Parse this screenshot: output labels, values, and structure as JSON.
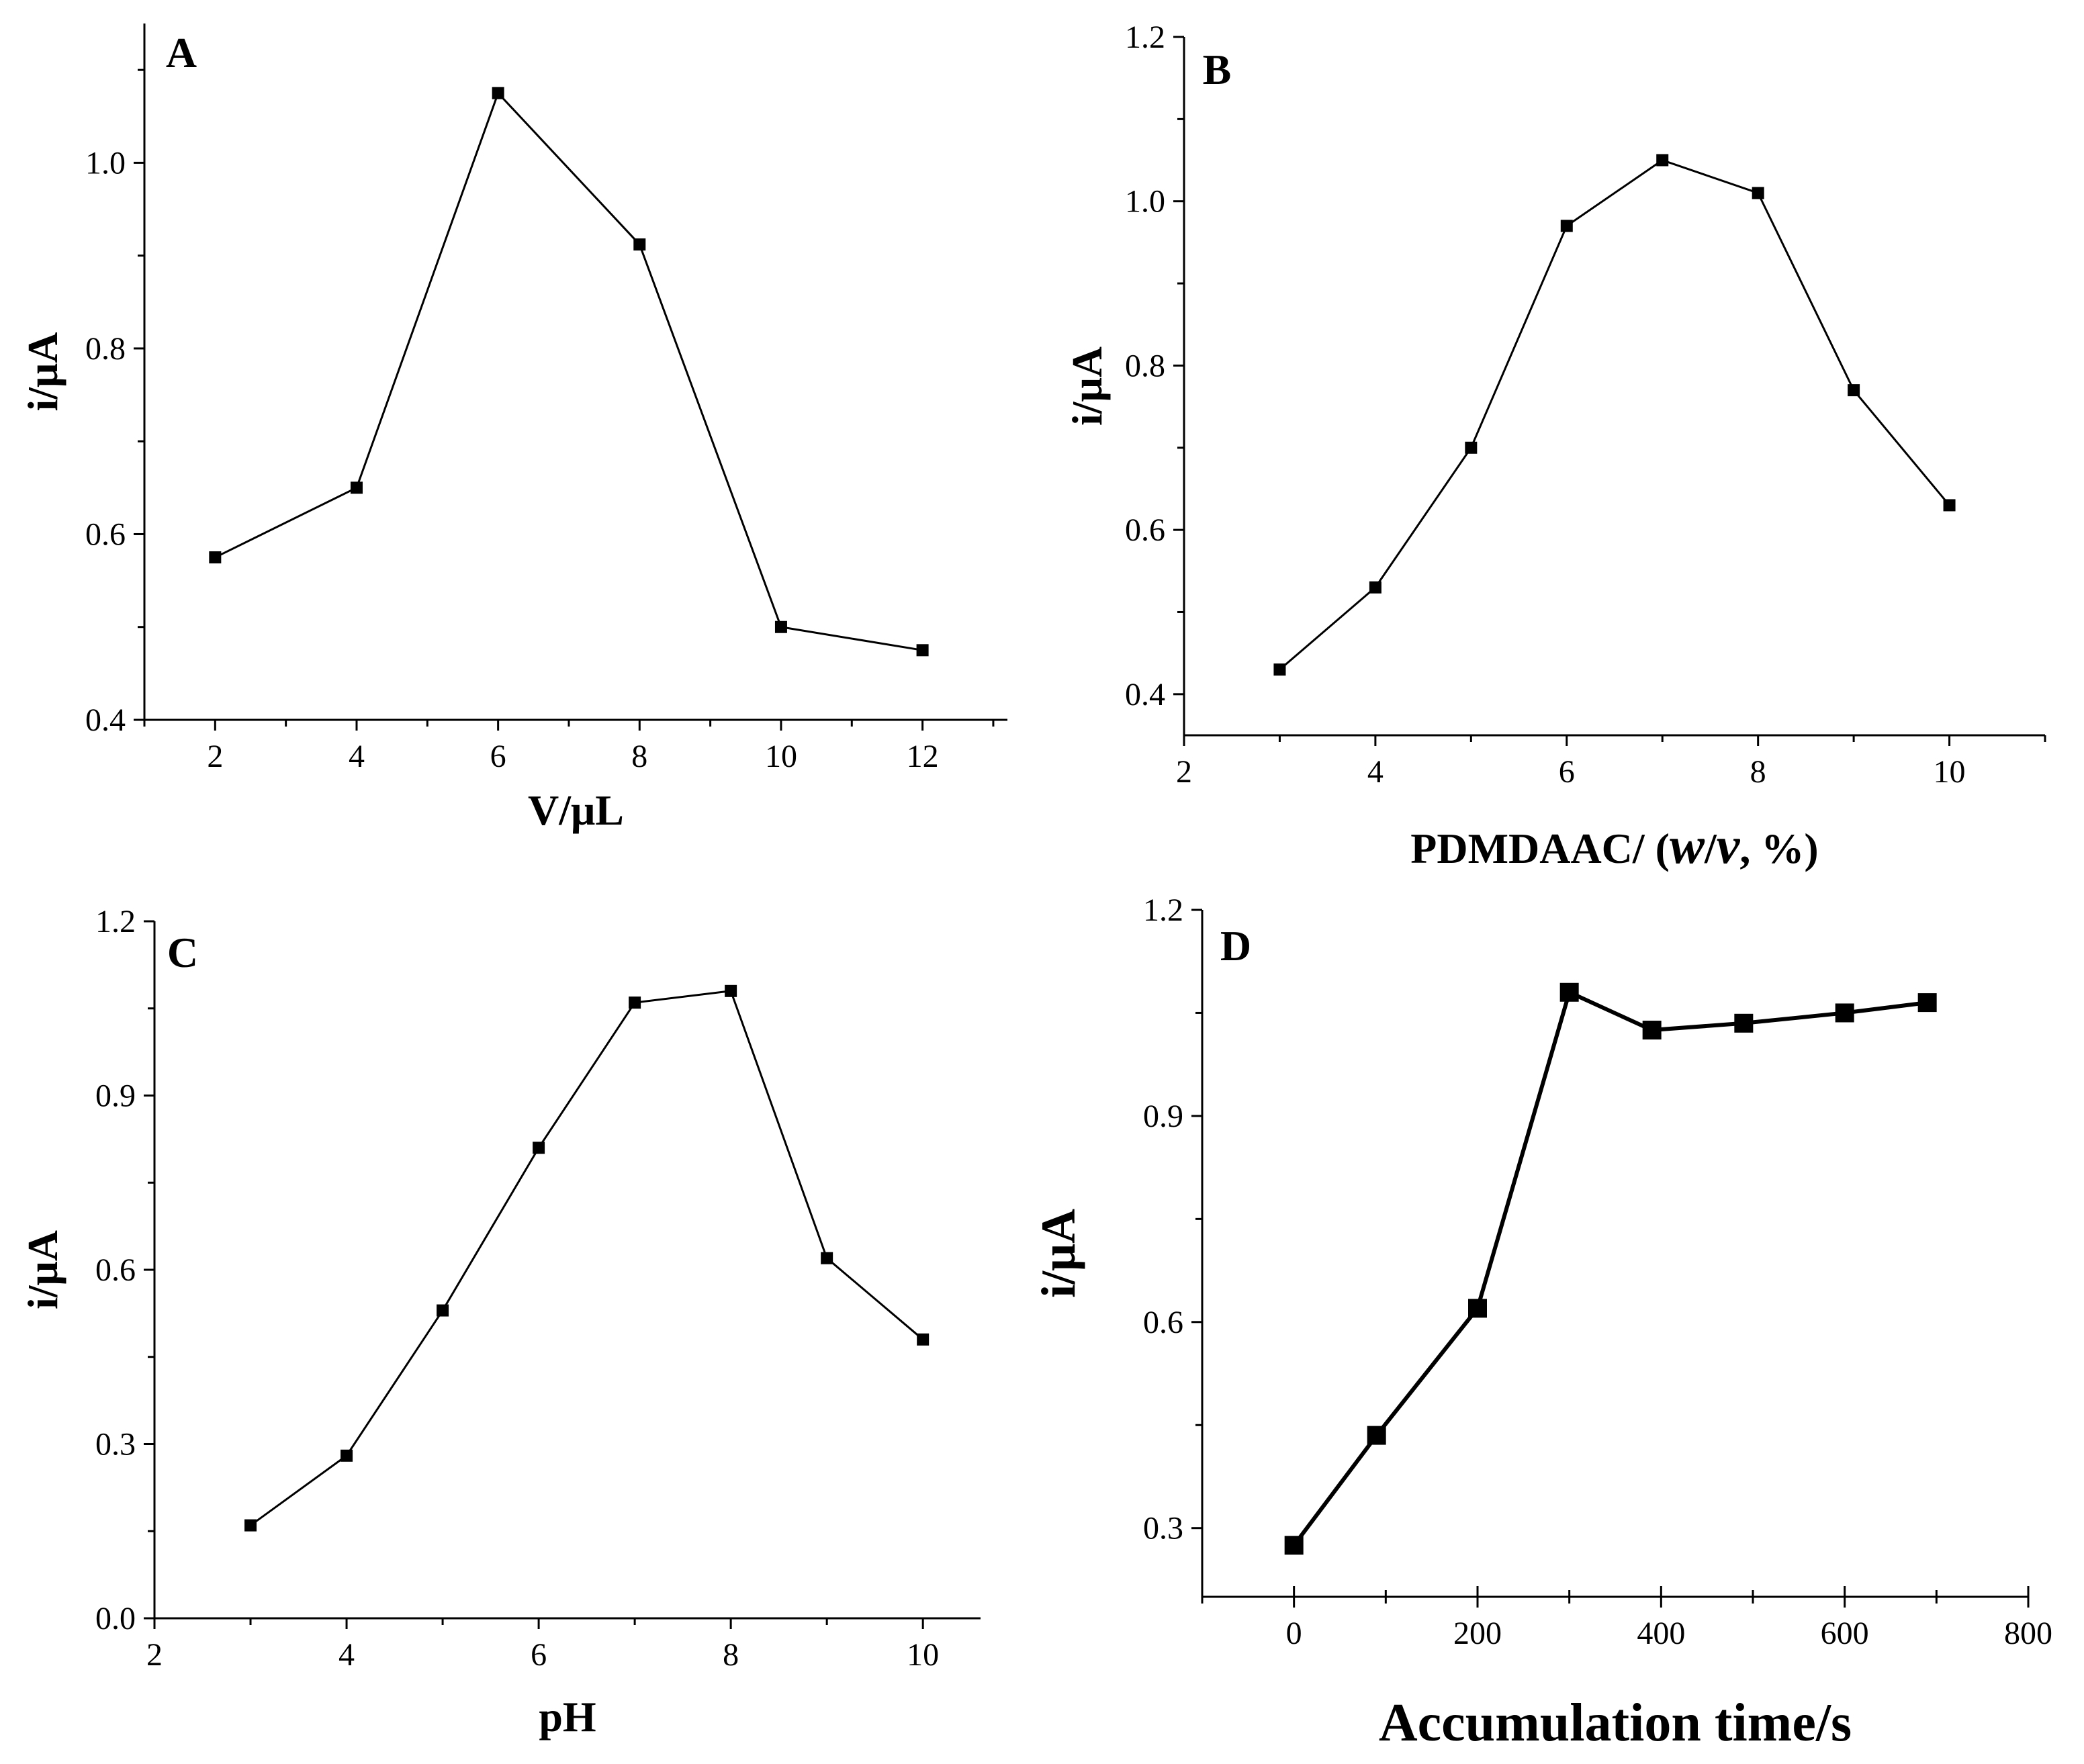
{
  "chart_data": [
    {
      "type": "line",
      "panel": "A",
      "xlabel": "V/μL",
      "ylabel": "i/μA",
      "xlim": [
        1,
        13.2
      ],
      "ylim": [
        0.4,
        1.15
      ],
      "xticks": [
        2,
        4,
        6,
        8,
        10,
        12
      ],
      "yticks": [
        0.4,
        0.6,
        0.8,
        1.0
      ],
      "xtick_labels": [
        "2",
        "4",
        "6",
        "8",
        "10",
        "12"
      ],
      "ytick_labels": [
        "0.4",
        "0.6",
        "0.8",
        "1.0"
      ],
      "x": [
        2,
        4,
        6,
        8,
        10,
        12
      ],
      "y": [
        0.575,
        0.65,
        1.075,
        0.912,
        0.5,
        0.475
      ]
    },
    {
      "type": "line",
      "panel": "B",
      "xlabel_main": "PDMDAAC/ (",
      "xlabel_w": "w",
      "xlabel_slash": "/",
      "xlabel_v": "v",
      "xlabel_tail": ", %)",
      "ylabel": "i/μA",
      "xlim": [
        2,
        11
      ],
      "ylim": [
        0.35,
        1.2
      ],
      "xticks": [
        2,
        4,
        6,
        8,
        10
      ],
      "yticks": [
        0.4,
        0.6,
        0.8,
        1.0,
        1.2
      ],
      "xtick_labels": [
        "2",
        "4",
        "6",
        "8",
        "10"
      ],
      "ytick_labels": [
        "0.4",
        "0.6",
        "0.8",
        "1.0",
        "1.2"
      ],
      "x": [
        3,
        4,
        5,
        6,
        7,
        8,
        9,
        10
      ],
      "y": [
        0.43,
        0.53,
        0.7,
        0.97,
        1.05,
        1.01,
        0.77,
        0.63
      ]
    },
    {
      "type": "line",
      "panel": "C",
      "xlabel": "pH",
      "ylabel": "i/μA",
      "xlim": [
        2,
        10.6
      ],
      "ylim": [
        0.0,
        1.2
      ],
      "xticks": [
        2,
        4,
        6,
        8,
        10
      ],
      "yticks": [
        0.0,
        0.3,
        0.6,
        0.9,
        1.2
      ],
      "xtick_labels": [
        "2",
        "4",
        "6",
        "8",
        "10"
      ],
      "ytick_labels": [
        "0.0",
        "0.3",
        "0.6",
        "0.9",
        "1.2"
      ],
      "x": [
        3,
        4,
        5,
        6,
        7,
        8,
        9,
        10
      ],
      "y": [
        0.16,
        0.28,
        0.53,
        0.81,
        1.06,
        1.08,
        0.62,
        0.48
      ]
    },
    {
      "type": "line",
      "panel": "D",
      "xlabel": "Accumulation time/s",
      "ylabel": "i/μA",
      "xlim": [
        -100,
        800
      ],
      "ylim": [
        0.2,
        1.2
      ],
      "xticks": [
        0,
        200,
        400,
        600,
        800
      ],
      "yticks": [
        0.3,
        0.6,
        0.9,
        1.2
      ],
      "xtick_labels": [
        "0",
        "200",
        "400",
        "600",
        "800"
      ],
      "ytick_labels": [
        "0.3",
        "0.6",
        "0.9",
        "1.2"
      ],
      "x": [
        0,
        90,
        200,
        300,
        390,
        490,
        600,
        690
      ],
      "y": [
        0.275,
        0.435,
        0.62,
        1.08,
        1.025,
        1.035,
        1.05,
        1.065
      ]
    }
  ]
}
